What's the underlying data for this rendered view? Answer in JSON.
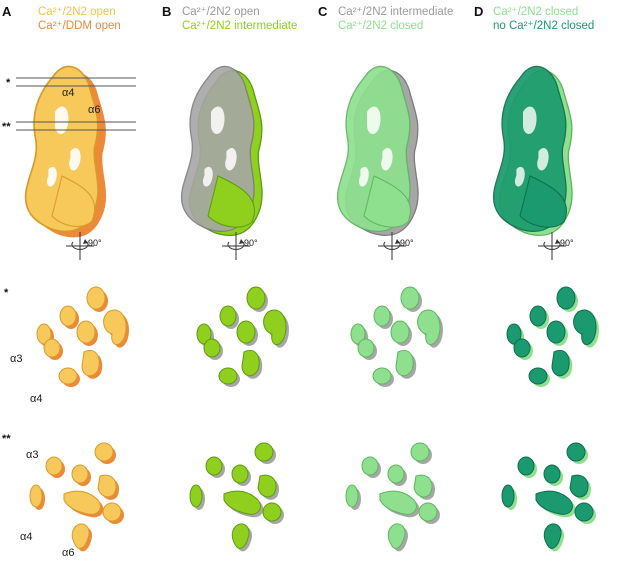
{
  "panels": [
    {
      "letter": "A",
      "legend": [
        {
          "text": "Ca²⁺/2N2 open",
          "color": "#f5c24a"
        },
        {
          "text": "Ca²⁺/DDM open",
          "color": "#ec8a3a"
        }
      ]
    },
    {
      "letter": "B",
      "legend": [
        {
          "text": "Ca²⁺/2N2 open",
          "color": "#9a9a9a"
        },
        {
          "text": "Ca²⁺/2N2 intermediate",
          "color": "#8fcf1e"
        }
      ]
    },
    {
      "letter": "C",
      "legend": [
        {
          "text": "Ca²⁺/2N2 intermediate",
          "color": "#9a9a9a"
        },
        {
          "text": "Ca²⁺/2N2 closed",
          "color": "#8ee08e"
        }
      ]
    },
    {
      "letter": "D",
      "legend": [
        {
          "text": "Ca²⁺/2N2 closed",
          "color": "#8ee08e"
        },
        {
          "text": "no Ca²⁺/2N2 closed",
          "color": "#1a9a6e"
        }
      ]
    }
  ],
  "annotations": {
    "alpha4_top": "α4",
    "alpha6_top": "α6",
    "alpha3_mid": "α3",
    "alpha4_mid": "α4",
    "alpha3_bot": "α3",
    "alpha4_bot": "α4",
    "alpha6_bot": "α6",
    "single_star": "*",
    "double_star": "**",
    "rotation": "90°"
  },
  "colors": {
    "gray": "#a6a6a6",
    "grayDark": "#7d7d7d",
    "yellow": "#f7c85a",
    "yellowDark": "#d99a2a",
    "orange": "#ec8a3a",
    "lime": "#8fcf1e",
    "limeDark": "#5f9a10",
    "mint": "#8ee08e",
    "mintDark": "#5fb55f",
    "teal": "#1a9a6e",
    "tealDark": "#0e6e4c"
  }
}
